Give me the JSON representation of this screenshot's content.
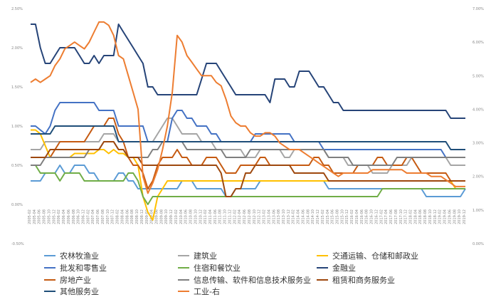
{
  "chart_data": {
    "type": "line",
    "x": [
      "2005-02",
      "2005-04",
      "2005-06",
      "2005-08",
      "2005-10",
      "2005-12",
      "2006-02",
      "2006-04",
      "2006-06",
      "2006-08",
      "2006-10",
      "2006-12",
      "2007-02",
      "2007-04",
      "2007-06",
      "2007-08",
      "2007-10",
      "2007-12",
      "2008-02",
      "2008-04",
      "2008-06",
      "2008-08",
      "2008-10",
      "2008-12",
      "2009-02",
      "2009-04",
      "2009-06",
      "2009-08",
      "2009-10",
      "2009-12",
      "2010-02",
      "2010-04",
      "2010-06",
      "2010-08",
      "2010-10",
      "2010-12",
      "2011-02",
      "2011-04",
      "2011-06",
      "2011-08",
      "2011-10",
      "2011-12",
      "2012-02",
      "2012-04",
      "2012-06",
      "2012-08",
      "2012-10",
      "2012-12",
      "2013-02",
      "2013-04",
      "2013-06",
      "2013-08",
      "2013-10",
      "2013-12",
      "2014-02",
      "2014-04",
      "2014-06",
      "2014-08",
      "2014-10",
      "2014-12",
      "2015-02",
      "2015-04",
      "2015-06",
      "2015-08",
      "2015-10",
      "2015-12",
      "2016-02",
      "2016-04",
      "2016-06",
      "2016-08",
      "2016-10",
      "2016-12",
      "2017-02",
      "2017-04",
      "2017-06",
      "2017-08",
      "2017-10",
      "2017-12",
      "2018-02",
      "2018-04",
      "2018-06",
      "2018-08",
      "2018-10",
      "2018-12",
      "2019-02",
      "2019-04",
      "2019-06",
      "2019-08",
      "2019-10",
      "2019-12"
    ],
    "y_left_ticks": [
      "2.50%",
      "2.00%",
      "1.50%",
      "1.00%",
      "0.50%",
      "0.00%",
      "-0.50%"
    ],
    "y_right_ticks": [
      "7.00%",
      "6.00%",
      "5.00%",
      "4.00%",
      "3.00%",
      "2.00%",
      "1.00%",
      "0.00%"
    ],
    "ylim_left": [
      -0.5,
      2.5
    ],
    "ylim_right": [
      0,
      7
    ],
    "grid": false,
    "legend": "bottom",
    "series": [
      {
        "name": "农林牧渔业",
        "color": "#5b9bd5",
        "axis": "left",
        "values": [
          0.3,
          0.3,
          0.3,
          0.4,
          0.4,
          0.4,
          0.5,
          0.4,
          0.4,
          0.5,
          0.5,
          0.5,
          0.4,
          0.4,
          0.3,
          0.3,
          0.3,
          0.3,
          0.4,
          0.4,
          0.3,
          0.3,
          0.2,
          0.2,
          0.2,
          0.2,
          0.2,
          0.2,
          0.2,
          0.2,
          0.2,
          0.3,
          0.3,
          0.3,
          0.2,
          0.2,
          0.2,
          0.2,
          0.2,
          0.2,
          0.1,
          0.1,
          0.2,
          0.2,
          0.2,
          0.2,
          0.2,
          0.3,
          0.3,
          0.3,
          0.3,
          0.3,
          0.3,
          0.3,
          0.3,
          0.3,
          0.3,
          0.3,
          0.3,
          0.3,
          0.3,
          0.2,
          0.2,
          0.2,
          0.2,
          0.2,
          0.2,
          0.2,
          0.2,
          0.2,
          0.2,
          0.2,
          0.2,
          0.2,
          0.2,
          0.2,
          0.2,
          0.2,
          0.2,
          0.2,
          0.2,
          0.1,
          0.1,
          0.1,
          0.1,
          0.1,
          0.1,
          0.1,
          0.1,
          0.2
        ]
      },
      {
        "name": "建筑业",
        "color": "#a5a5a5",
        "axis": "left",
        "values": [
          0.7,
          0.7,
          0.7,
          0.8,
          0.8,
          0.8,
          0.8,
          0.8,
          0.8,
          0.8,
          0.8,
          0.8,
          0.8,
          0.8,
          0.8,
          0.9,
          0.9,
          0.9,
          0.8,
          0.8,
          0.8,
          0.8,
          0.8,
          0.8,
          0.8,
          0.8,
          0.9,
          1.0,
          1.1,
          1.1,
          1.0,
          0.9,
          0.9,
          0.9,
          0.9,
          0.8,
          0.8,
          0.8,
          0.7,
          0.7,
          0.7,
          0.7,
          0.7,
          0.7,
          0.6,
          0.6,
          0.6,
          0.7,
          0.7,
          0.7,
          0.7,
          0.7,
          0.6,
          0.6,
          0.7,
          0.7,
          0.7,
          0.7,
          0.7,
          0.7,
          0.7,
          0.6,
          0.6,
          0.6,
          0.6,
          0.5,
          0.5,
          0.5,
          0.5,
          0.5,
          0.4,
          0.4,
          0.4,
          0.4,
          0.5,
          0.5,
          0.5,
          0.5,
          0.6,
          0.6,
          0.6,
          0.6,
          0.6,
          0.6,
          0.6,
          0.6,
          0.5,
          0.5,
          0.5,
          0.5
        ]
      },
      {
        "name": "交通运输、仓储和邮政业",
        "color": "#ffc000",
        "axis": "left",
        "values": [
          0.95,
          0.95,
          0.9,
          0.75,
          0.6,
          0.6,
          0.6,
          0.6,
          0.6,
          0.65,
          0.65,
          0.65,
          0.65,
          0.65,
          0.7,
          0.7,
          0.65,
          0.7,
          0.65,
          0.65,
          0.6,
          0.6,
          0.5,
          0.1,
          -0.1,
          -0.2,
          0.1,
          0.2,
          0.3,
          0.3,
          0.3,
          0.3,
          0.3,
          0.3,
          0.3,
          0.3,
          0.3,
          0.3,
          0.3,
          0.3,
          0.3,
          0.3,
          0.3,
          0.3,
          0.3,
          0.3,
          0.3,
          0.3,
          0.3,
          0.3,
          0.3,
          0.3,
          0.3,
          0.3,
          0.3,
          0.3,
          0.3,
          0.3,
          0.3,
          0.3,
          0.3,
          0.3,
          0.3,
          0.3,
          0.3,
          0.3,
          0.3,
          0.3,
          0.3,
          0.3,
          0.3,
          0.3,
          0.3,
          0.3,
          0.3,
          0.3,
          0.3,
          0.3,
          0.3,
          0.3,
          0.3,
          0.3,
          0.3,
          0.3,
          0.3,
          0.3,
          0.3,
          0.2,
          0.2,
          0.2
        ]
      },
      {
        "name": "批发和零售业",
        "color": "#4472c4",
        "axis": "left",
        "values": [
          1.0,
          1.0,
          0.95,
          0.9,
          1.0,
          1.2,
          1.3,
          1.3,
          1.3,
          1.3,
          1.3,
          1.3,
          1.3,
          1.3,
          1.2,
          1.2,
          1.2,
          1.2,
          1.0,
          1.0,
          1.0,
          1.0,
          1.0,
          1.0,
          0.8,
          0.8,
          0.8,
          0.8,
          0.8,
          1.1,
          1.2,
          1.2,
          1.1,
          1.1,
          1.0,
          1.0,
          1.0,
          0.9,
          0.9,
          0.8,
          0.8,
          0.8,
          0.8,
          0.8,
          0.8,
          0.8,
          0.9,
          0.9,
          0.9,
          0.9,
          0.9,
          0.9,
          0.9,
          0.9,
          0.8,
          0.8,
          0.8,
          0.8,
          0.8,
          0.8,
          0.7,
          0.7,
          0.7,
          0.7,
          0.7,
          0.7,
          0.7,
          0.7,
          0.7,
          0.7,
          0.7,
          0.7,
          0.7,
          0.7,
          0.7,
          0.7,
          0.7,
          0.7,
          0.7,
          0.7,
          0.7,
          0.7,
          0.7,
          0.7,
          0.7,
          0.6,
          0.6,
          0.6,
          0.6,
          0.6
        ]
      },
      {
        "name": "住宿和餐饮业",
        "color": "#70ad47",
        "axis": "left",
        "values": [
          0.5,
          0.5,
          0.4,
          0.4,
          0.4,
          0.4,
          0.3,
          0.4,
          0.4,
          0.4,
          0.4,
          0.3,
          0.3,
          0.3,
          0.3,
          0.3,
          0.3,
          0.3,
          0.3,
          0.3,
          0.4,
          0.4,
          0.3,
          0.1,
          0.0,
          0.1,
          0.1,
          0.1,
          0.1,
          0.1,
          0.1,
          0.1,
          0.1,
          0.1,
          0.1,
          0.1,
          0.1,
          0.1,
          0.1,
          0.1,
          0.1,
          0.1,
          0.1,
          0.1,
          0.1,
          0.1,
          0.1,
          0.1,
          0.1,
          0.1,
          0.1,
          0.1,
          0.1,
          0.1,
          0.1,
          0.1,
          0.1,
          0.1,
          0.1,
          0.1,
          0.1,
          0.1,
          0.1,
          0.1,
          0.1,
          0.1,
          0.1,
          0.1,
          0.1,
          0.1,
          0.1,
          0.1,
          0.2,
          0.2,
          0.2,
          0.2,
          0.2,
          0.2,
          0.2,
          0.2,
          0.2,
          0.2,
          0.2,
          0.2,
          0.2,
          0.2,
          0.2,
          0.2,
          0.2,
          0.2
        ]
      },
      {
        "name": "金融业",
        "color": "#264478",
        "axis": "left",
        "values": [
          2.3,
          2.3,
          2.0,
          1.8,
          1.8,
          1.9,
          2.0,
          2.0,
          2.0,
          2.0,
          1.9,
          1.8,
          1.8,
          1.9,
          1.8,
          1.9,
          1.9,
          1.9,
          2.3,
          2.2,
          2.1,
          2.0,
          1.9,
          1.8,
          1.5,
          1.5,
          1.4,
          1.4,
          1.4,
          1.4,
          1.4,
          1.4,
          1.4,
          1.4,
          1.4,
          1.6,
          1.8,
          1.8,
          1.8,
          1.7,
          1.6,
          1.5,
          1.4,
          1.4,
          1.4,
          1.4,
          1.4,
          1.4,
          1.4,
          1.3,
          1.6,
          1.6,
          1.6,
          1.5,
          1.5,
          1.7,
          1.7,
          1.7,
          1.6,
          1.5,
          1.5,
          1.4,
          1.3,
          1.3,
          1.2,
          1.2,
          1.2,
          1.2,
          1.2,
          1.2,
          1.2,
          1.2,
          1.2,
          1.2,
          1.2,
          1.2,
          1.2,
          1.2,
          1.2,
          1.2,
          1.2,
          1.2,
          1.2,
          1.2,
          1.2,
          1.2,
          1.1,
          1.1,
          1.1,
          1.1
        ]
      },
      {
        "name": "房地产业",
        "color": "#c55a11",
        "axis": "left",
        "values": [
          0.6,
          0.6,
          0.6,
          0.6,
          0.6,
          0.7,
          0.8,
          0.8,
          0.8,
          0.8,
          0.8,
          0.8,
          0.9,
          1.0,
          1.0,
          1.0,
          1.1,
          1.1,
          0.9,
          0.8,
          0.6,
          0.5,
          0.5,
          0.4,
          0.2,
          0.3,
          0.5,
          0.6,
          0.6,
          0.6,
          0.7,
          0.6,
          0.6,
          0.5,
          0.5,
          0.5,
          0.6,
          0.6,
          0.6,
          0.5,
          0.4,
          0.4,
          0.4,
          0.5,
          0.5,
          0.5,
          0.5,
          0.6,
          0.6,
          0.5,
          0.5,
          0.5,
          0.5,
          0.5,
          0.5,
          0.5,
          0.5,
          0.5,
          0.6,
          0.6,
          0.5,
          0.5,
          0.4,
          0.4,
          0.4,
          0.4,
          0.4,
          0.5,
          0.5,
          0.5,
          0.5,
          0.6,
          0.6,
          0.5,
          0.5,
          0.5,
          0.5,
          0.6,
          0.6,
          0.5,
          0.4,
          0.4,
          0.4,
          0.4,
          0.4,
          0.4,
          0.3,
          0.3,
          0.3,
          0.3
        ]
      },
      {
        "name": "信息传输、软件和信息技术服务业",
        "color": "#7f7f7f",
        "axis": "left",
        "values": [
          0.5,
          0.5,
          0.5,
          0.6,
          0.6,
          0.6,
          0.6,
          0.6,
          0.6,
          0.6,
          0.6,
          0.6,
          0.7,
          0.7,
          0.7,
          0.8,
          0.8,
          0.8,
          0.7,
          0.7,
          0.6,
          0.6,
          0.6,
          0.6,
          0.6,
          0.7,
          0.7,
          0.8,
          0.8,
          0.8,
          0.8,
          0.8,
          0.7,
          0.7,
          0.7,
          0.7,
          0.7,
          0.7,
          0.7,
          0.7,
          0.6,
          0.6,
          0.6,
          0.6,
          0.6,
          0.7,
          0.7,
          0.7,
          0.7,
          0.7,
          0.7,
          0.7,
          0.7,
          0.7,
          0.7,
          0.7,
          0.7,
          0.7,
          0.7,
          0.7,
          0.7,
          0.6,
          0.6,
          0.6,
          0.6,
          0.6,
          0.5,
          0.5,
          0.5,
          0.5,
          0.5,
          0.5,
          0.5,
          0.5,
          0.5,
          0.6,
          0.6,
          0.6,
          0.6,
          0.6,
          0.6,
          0.6,
          0.6,
          0.6,
          0.6,
          0.6,
          0.6,
          0.6,
          0.6,
          0.6
        ]
      },
      {
        "name": "租赁和商务服务业",
        "color": "#9e480e",
        "axis": "left",
        "values": [
          0.6,
          0.6,
          0.6,
          0.6,
          0.7,
          0.7,
          0.7,
          0.7,
          0.7,
          0.7,
          0.7,
          0.7,
          0.7,
          0.7,
          0.7,
          0.8,
          0.8,
          0.8,
          0.7,
          0.7,
          0.6,
          0.6,
          0.6,
          0.5,
          0.5,
          0.5,
          0.5,
          0.5,
          0.5,
          0.5,
          0.5,
          0.5,
          0.5,
          0.5,
          0.5,
          0.5,
          0.5,
          0.5,
          0.5,
          0.4,
          0.1,
          0.1,
          0.2,
          0.2,
          0.4,
          0.4,
          0.5,
          0.5,
          0.5,
          0.5,
          0.5,
          0.5,
          0.5,
          0.5,
          0.4,
          0.4,
          0.4,
          0.4,
          0.4,
          0.4,
          0.4,
          0.3,
          0.3,
          0.3,
          0.3,
          0.3,
          0.3,
          0.3,
          0.3,
          0.3,
          0.3,
          0.3,
          0.3,
          0.3,
          0.3,
          0.3,
          0.3,
          0.3,
          0.3,
          0.3,
          0.3,
          0.3,
          0.3,
          0.3,
          0.3,
          0.3,
          0.3,
          0.3,
          0.3,
          0.3
        ]
      },
      {
        "name": "其他服务业",
        "color": "#1f4e79",
        "axis": "left",
        "values": [
          0.9,
          0.9,
          0.9,
          0.9,
          0.9,
          1.0,
          1.0,
          1.0,
          1.0,
          1.0,
          1.0,
          1.0,
          1.0,
          1.0,
          1.0,
          1.0,
          1.0,
          1.0,
          0.8,
          0.8,
          0.8,
          0.8,
          0.8,
          0.8,
          0.8,
          0.8,
          0.8,
          0.8,
          0.8,
          0.8,
          0.8,
          0.8,
          0.8,
          0.8,
          0.8,
          0.8,
          0.8,
          0.8,
          0.8,
          0.8,
          0.8,
          0.8,
          0.8,
          0.8,
          0.8,
          0.8,
          0.8,
          0.8,
          0.8,
          0.8,
          0.8,
          0.8,
          0.8,
          0.8,
          0.8,
          0.8,
          0.8,
          0.8,
          0.8,
          0.8,
          0.8,
          0.8,
          0.8,
          0.8,
          0.8,
          0.8,
          0.8,
          0.8,
          0.8,
          0.8,
          0.8,
          0.8,
          0.8,
          0.8,
          0.8,
          0.8,
          0.8,
          0.8,
          0.8,
          0.8,
          0.8,
          0.8,
          0.8,
          0.8,
          0.8,
          0.8,
          0.7,
          0.7,
          0.7,
          0.7
        ]
      },
      {
        "name": "工业-右",
        "color": "#ed7d31",
        "axis": "right",
        "values": [
          4.8,
          4.9,
          4.8,
          4.9,
          5.0,
          5.3,
          5.5,
          5.8,
          5.9,
          6.0,
          5.9,
          5.8,
          6.0,
          6.3,
          6.6,
          6.6,
          6.5,
          6.2,
          5.6,
          5.5,
          5.0,
          4.5,
          4.0,
          2.0,
          1.5,
          1.8,
          2.2,
          2.8,
          3.5,
          4.5,
          6.2,
          6.0,
          5.6,
          5.4,
          5.2,
          5.0,
          5.0,
          5.0,
          4.8,
          4.7,
          4.3,
          3.8,
          3.6,
          3.5,
          3.5,
          3.3,
          3.2,
          3.2,
          3.3,
          3.3,
          3.2,
          3.0,
          2.9,
          2.8,
          2.8,
          2.8,
          2.7,
          2.6,
          2.5,
          2.4,
          2.3,
          2.2,
          2.1,
          2.0,
          2.1,
          2.1,
          2.1,
          2.1,
          2.1,
          2.1,
          2.2,
          2.2,
          2.2,
          2.2,
          2.2,
          2.2,
          2.2,
          2.1,
          2.1,
          2.1,
          2.1,
          2.1,
          2.0,
          2.0,
          2.0,
          1.9,
          1.8,
          1.7,
          1.7,
          1.7
        ]
      }
    ]
  }
}
